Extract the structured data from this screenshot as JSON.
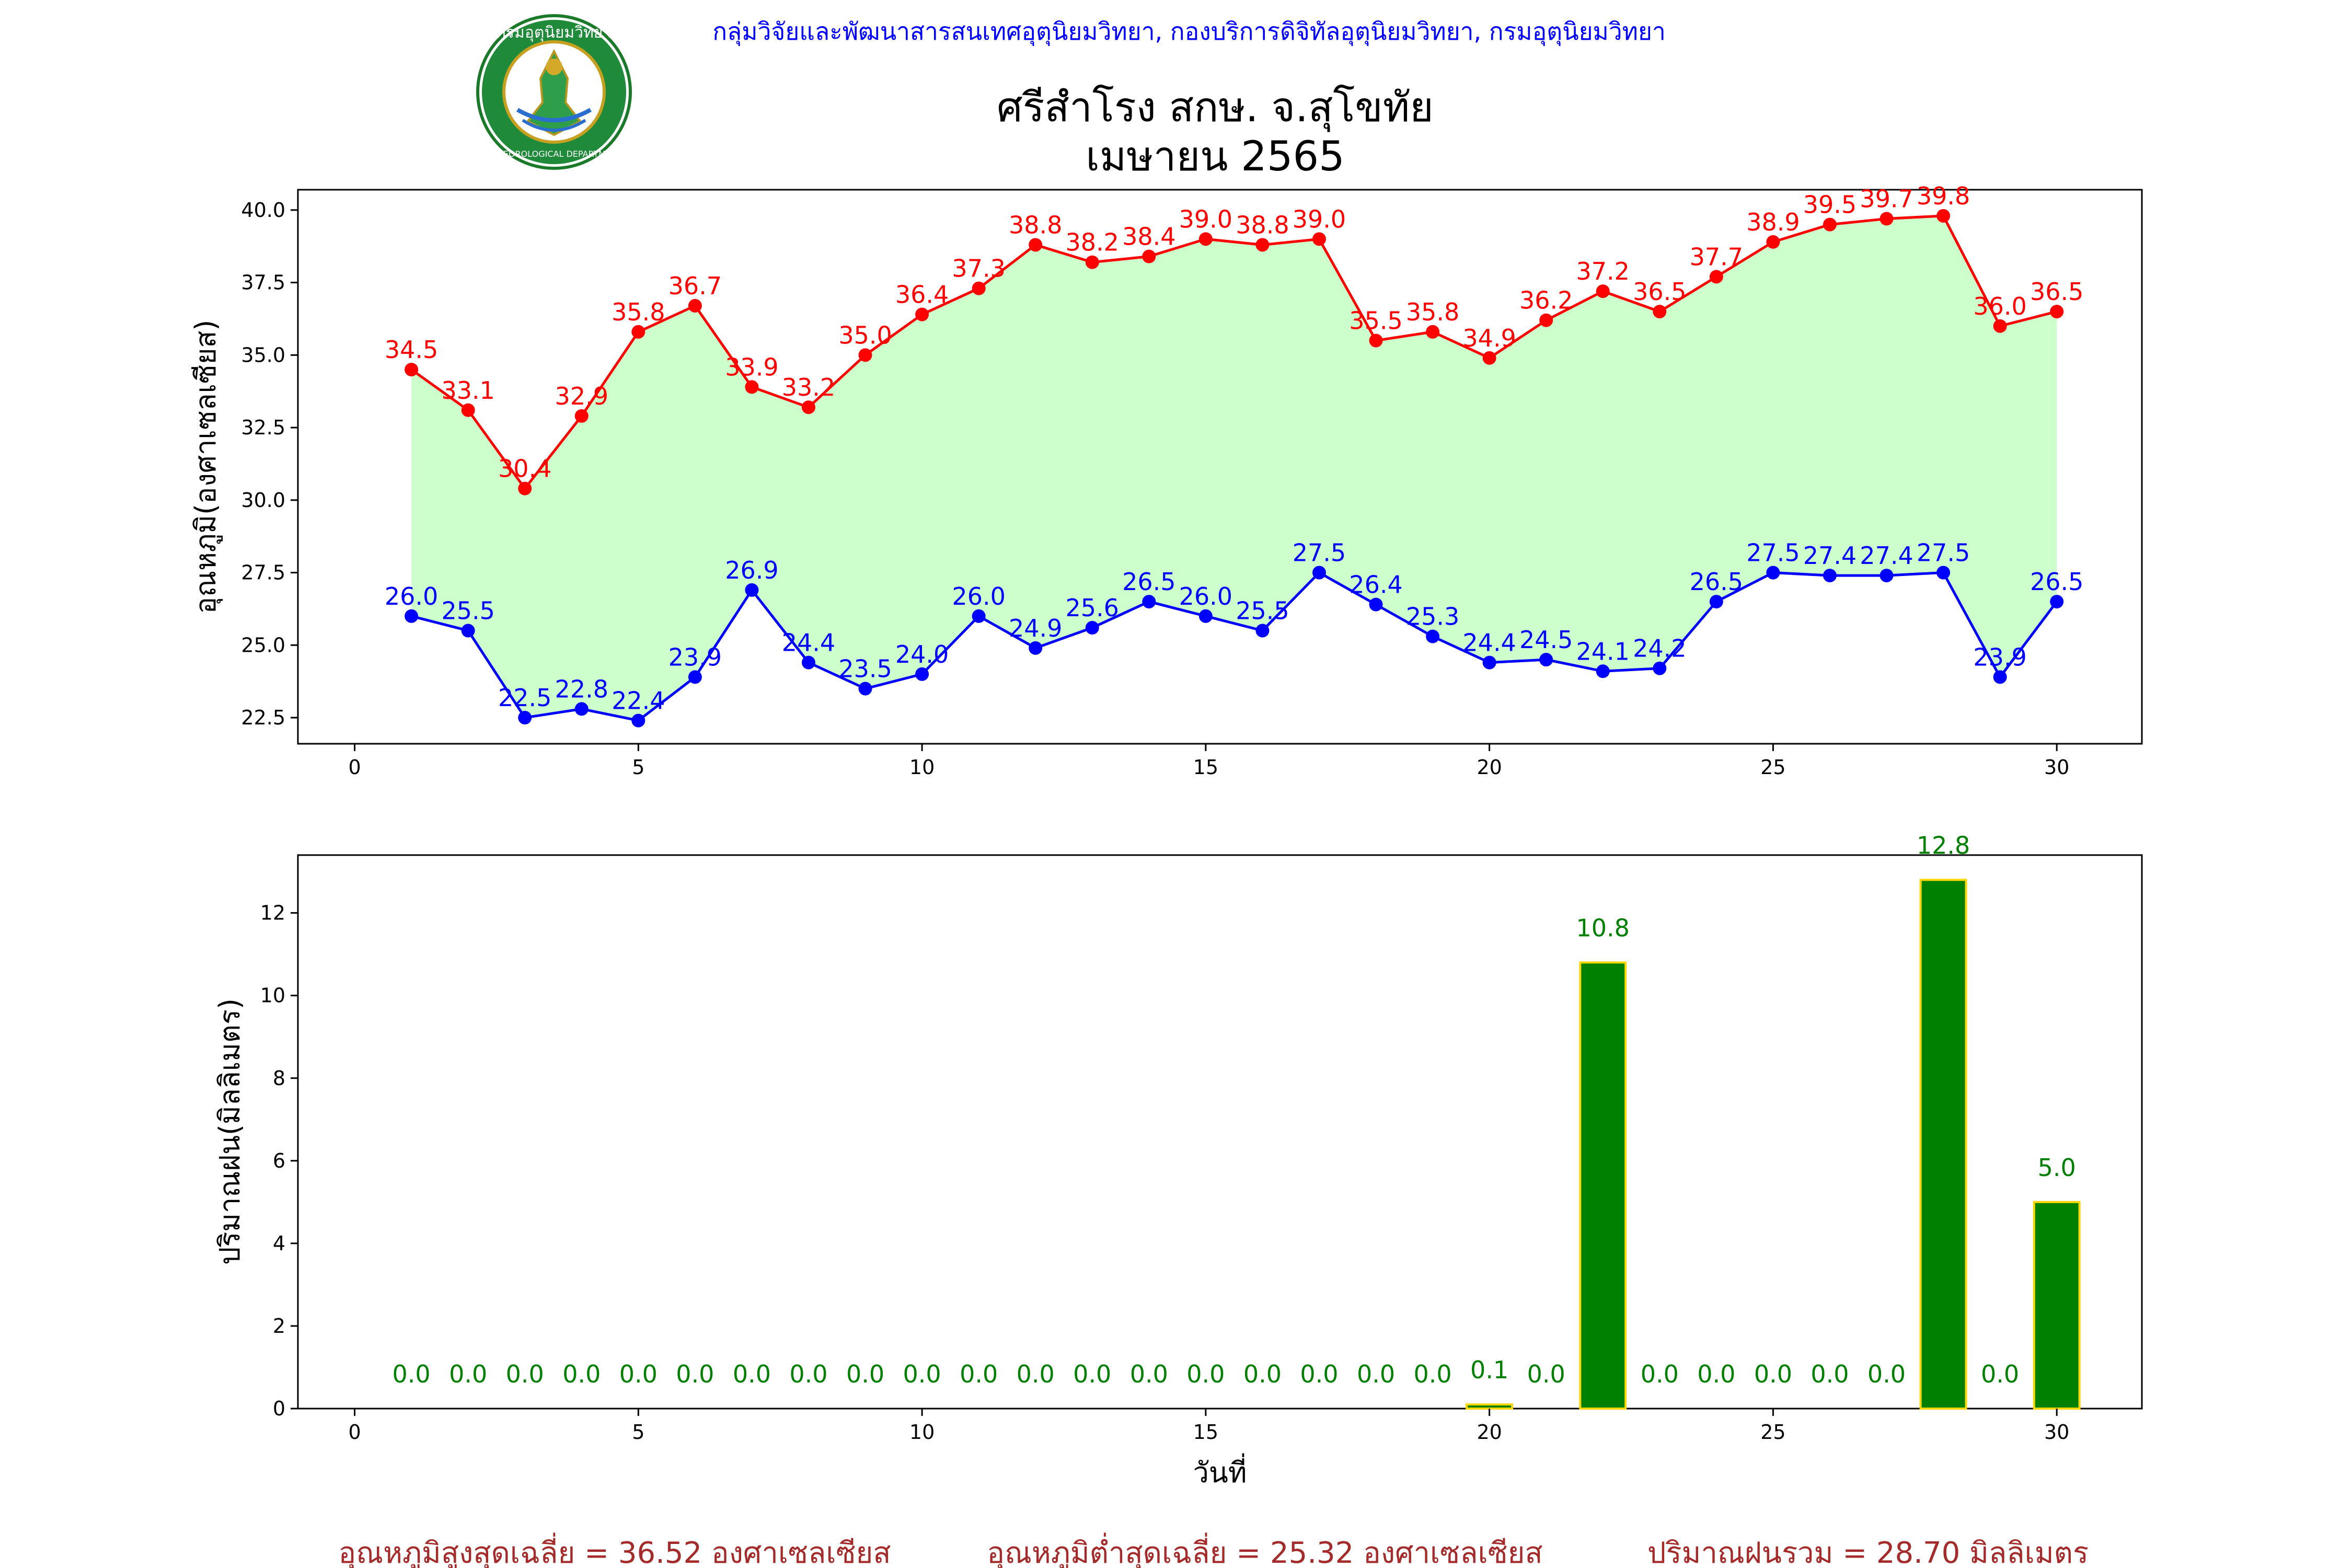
{
  "header": {
    "department_line": "กลุ่มวิจัยและพัฒนาสารสนเทศอุตุนิยมวิทยา, กองบริการดิจิทัลอุตุนิยมวิทยา, กรมอุตุนิยมวิทยา",
    "logo_ring_text": "กรมอุตุนิยมวิทยา",
    "logo_bottom_text": "METEOROLOGICAL DEPARTMENT"
  },
  "title": {
    "line1": "ศรีสำโรง สกษ. จ.สุโขทัย",
    "line2": "เมษายน 2565"
  },
  "colors": {
    "max_line": "#ff0000",
    "min_line": "#0000ff",
    "band_fill": "#ccffcc",
    "bar_fill": "#008000",
    "bar_edge": "#ffd700",
    "rain_label": "#008000",
    "summary_text": "#a52a2a"
  },
  "chart_data": [
    {
      "type": "line",
      "ylabel": "อุณหภูมิ(องศาเซลเซียส)",
      "xlabel": "",
      "xlim": [
        -1,
        31.5
      ],
      "ylim": [
        21.6,
        40.7
      ],
      "xticks": [
        0,
        5,
        10,
        15,
        20,
        25,
        30
      ],
      "yticks": [
        22.5,
        25.0,
        27.5,
        30.0,
        32.5,
        35.0,
        37.5,
        40.0
      ],
      "x": [
        1,
        2,
        3,
        4,
        5,
        6,
        7,
        8,
        9,
        10,
        11,
        12,
        13,
        14,
        15,
        16,
        17,
        18,
        19,
        20,
        21,
        22,
        23,
        24,
        25,
        26,
        27,
        28,
        29,
        30
      ],
      "series": [
        {
          "role": "max",
          "values": [
            34.5,
            33.1,
            30.4,
            32.9,
            35.8,
            36.7,
            33.9,
            33.2,
            35.0,
            36.4,
            37.3,
            38.8,
            38.2,
            38.4,
            39.0,
            38.8,
            39.0,
            35.5,
            35.8,
            34.9,
            36.2,
            37.2,
            36.5,
            37.7,
            38.9,
            39.5,
            39.7,
            39.8,
            36.0,
            36.5
          ]
        },
        {
          "role": "min",
          "values": [
            26.0,
            25.5,
            22.5,
            22.8,
            22.4,
            23.9,
            26.9,
            24.4,
            23.5,
            24.0,
            26.0,
            24.9,
            25.6,
            26.5,
            26.0,
            25.5,
            27.5,
            26.4,
            25.3,
            24.4,
            24.5,
            24.1,
            24.2,
            26.5,
            27.5,
            27.4,
            27.4,
            27.5,
            23.9,
            26.5
          ]
        }
      ],
      "fill_between": true,
      "grid": false,
      "legend": "none"
    },
    {
      "type": "bar",
      "ylabel": "ปริมาณฝน(มิลลิเมตร)",
      "xlabel": "วันที่",
      "xlim": [
        -1,
        31.5
      ],
      "ylim": [
        0,
        13.4
      ],
      "xticks": [
        0,
        5,
        10,
        15,
        20,
        25,
        30
      ],
      "yticks": [
        0,
        2,
        4,
        6,
        8,
        10,
        12
      ],
      "x": [
        1,
        2,
        3,
        4,
        5,
        6,
        7,
        8,
        9,
        10,
        11,
        12,
        13,
        14,
        15,
        16,
        17,
        18,
        19,
        20,
        21,
        22,
        23,
        24,
        25,
        26,
        27,
        28,
        29,
        30
      ],
      "values": [
        0.0,
        0.0,
        0.0,
        0.0,
        0.0,
        0.0,
        0.0,
        0.0,
        0.0,
        0.0,
        0.0,
        0.0,
        0.0,
        0.0,
        0.0,
        0.0,
        0.0,
        0.0,
        0.0,
        0.1,
        0.0,
        10.8,
        0.0,
        0.0,
        0.0,
        0.0,
        0.0,
        12.8,
        0.0,
        5.0
      ],
      "grid": false,
      "legend": "none"
    }
  ],
  "summary": {
    "avg_max": "อุณหภูมิสูงสุดเฉลี่ย = 36.52 องศาเซลเซียส",
    "avg_min": "อุณหภูมิต่ำสุดเฉลี่ย = 25.32 องศาเซลเซียส",
    "total_rain": "ปริมาณฝนรวม = 28.70 มิลลิเมตร"
  }
}
